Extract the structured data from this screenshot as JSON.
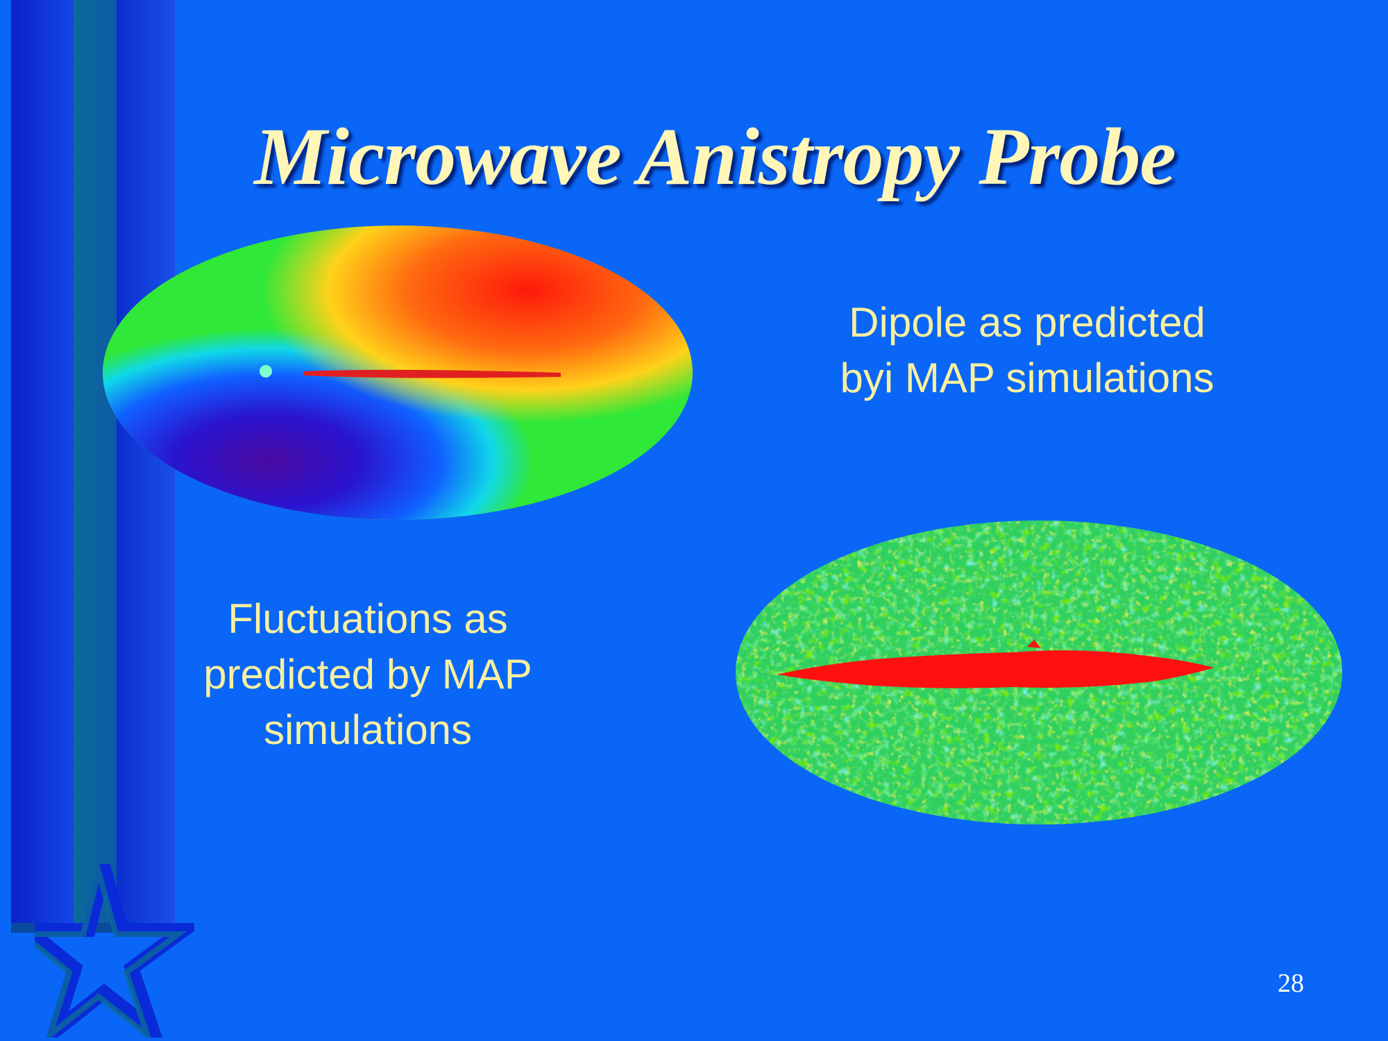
{
  "slide": {
    "title": "Microwave Anistropy Probe",
    "dipole_caption": {
      "line1": "Dipole as predicted",
      "line2": "byi MAP simulations"
    },
    "fluctuation_caption": {
      "line1": "Fluctuations as",
      "line2": "predicted by MAP",
      "line3": "simulations"
    },
    "page_number": "28"
  },
  "colors": {
    "background": "#0a66f6",
    "title": "#fff6b8",
    "caption": "#f8f0a0"
  },
  "icons": [
    "star-icon"
  ]
}
